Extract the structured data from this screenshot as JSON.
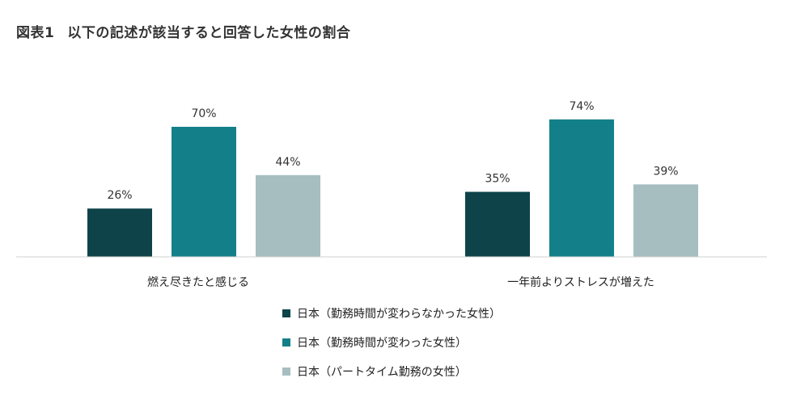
{
  "title": {
    "figure_no": "図表1",
    "text": "以下の記述が該当すると回答した女性の割合"
  },
  "chart_data": {
    "type": "bar",
    "categories": [
      "燃え尽きたと感じる",
      "一年前よりストレスが増えた"
    ],
    "series": [
      {
        "name": "日本（勤務時間が変わらなかった女性）",
        "values": [
          26,
          35
        ],
        "labels": [
          "26%",
          "35%"
        ],
        "color": "#0d4349"
      },
      {
        "name": "日本（勤務時間が変わった女性）",
        "values": [
          70,
          74
        ],
        "labels": [
          "70%",
          "74%"
        ],
        "color": "#138089"
      },
      {
        "name": "日本（パートタイム勤務の女性）",
        "values": [
          44,
          39
        ],
        "labels": [
          "44%",
          "39%"
        ],
        "color": "#a7bec0"
      }
    ],
    "unit": "%",
    "ylim": [
      0,
      100
    ],
    "grid": false,
    "legend_position": "bottom-center"
  }
}
